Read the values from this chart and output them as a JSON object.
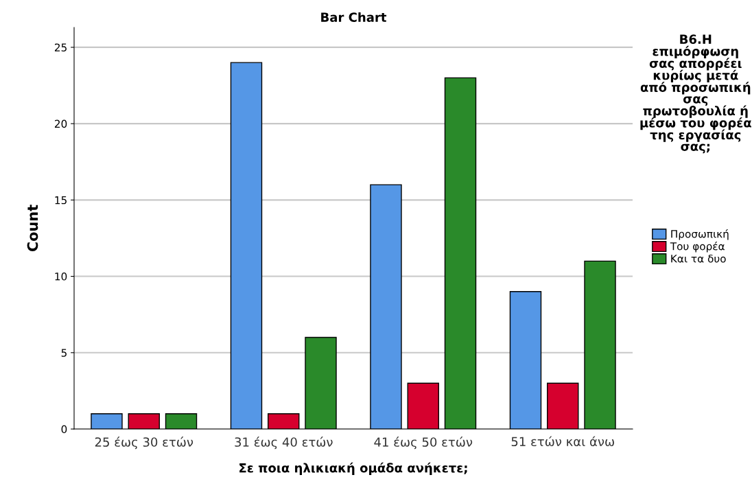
{
  "chart_data": {
    "type": "bar",
    "title": "Bar Chart",
    "xlabel": "Σε ποια ηλικιακή ομάδα ανήκετε;",
    "ylabel": "Count",
    "legend_title": "B6.Η επιμόρφωση σας απορρέει κυρίως μετά από προσωπική σας πρωτοβουλία ή μέσω του φορέα της εργασίας σας;",
    "categories": [
      "25 έως 30 ετών",
      "31 έως 40 ετών",
      "41 έως 50 ετών",
      "51 ετών και άνω"
    ],
    "series": [
      {
        "name": "Προσωπική",
        "color": "#5597e6",
        "values": [
          1,
          24,
          16,
          9
        ]
      },
      {
        "name": "Του φορέα",
        "color": "#d6002e",
        "values": [
          1,
          1,
          3,
          3
        ]
      },
      {
        "name": "Και τα δυο",
        "color": "#2a8a2a",
        "values": [
          1,
          6,
          23,
          11
        ]
      }
    ],
    "ylim": [
      0,
      26.3
    ],
    "yticks": [
      0,
      5,
      10,
      15,
      20,
      25
    ],
    "grid": "y",
    "legend": "right"
  }
}
